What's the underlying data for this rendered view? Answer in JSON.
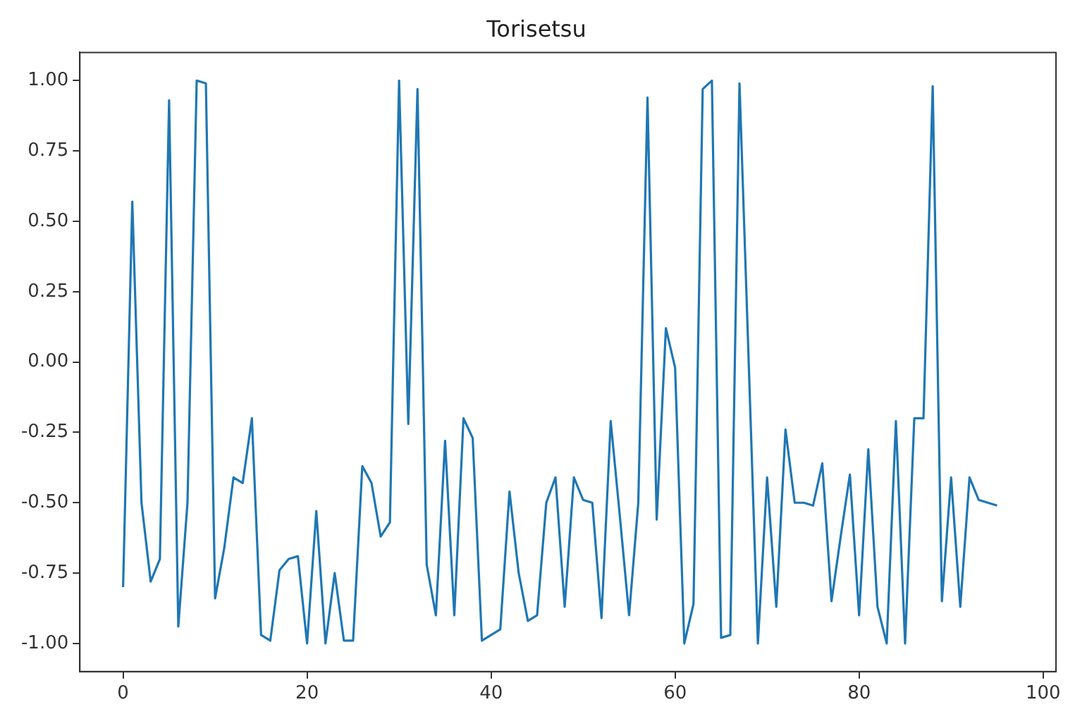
{
  "chart_data": {
    "type": "line",
    "title": "Torisetsu",
    "x": [
      0,
      1,
      2,
      3,
      4,
      5,
      6,
      7,
      8,
      9,
      10,
      11,
      12,
      13,
      14,
      15,
      16,
      17,
      18,
      19,
      20,
      21,
      22,
      23,
      24,
      25,
      26,
      27,
      28,
      29,
      30,
      31,
      32,
      33,
      34,
      35,
      36,
      37,
      38,
      39,
      40,
      41,
      42,
      43,
      44,
      45,
      46,
      47,
      48,
      49,
      50,
      51,
      52,
      53,
      54,
      55,
      56,
      57,
      58,
      59,
      60,
      61,
      62,
      63,
      64,
      65,
      66,
      67,
      68,
      69,
      70,
      71,
      72,
      73,
      74,
      75,
      76,
      77,
      78,
      79,
      80,
      81,
      82,
      83,
      84,
      85,
      86,
      87,
      88,
      89,
      90,
      91,
      92,
      93,
      94,
      95
    ],
    "series": [
      {
        "color": "#1f77b4",
        "values": [
          -0.8,
          0.57,
          -0.5,
          -0.78,
          -0.7,
          0.93,
          -0.94,
          -0.5,
          1.0,
          0.99,
          -0.84,
          -0.66,
          -0.41,
          -0.43,
          -0.2,
          -0.97,
          -0.99,
          -0.74,
          -0.7,
          -0.69,
          -1.0,
          -0.53,
          -1.0,
          -0.75,
          -0.99,
          -0.99,
          -0.37,
          -0.43,
          -0.62,
          -0.57,
          1.0,
          -0.22,
          0.97,
          -0.72,
          -0.9,
          -0.28,
          -0.9,
          -0.2,
          -0.27,
          -0.99,
          -0.97,
          -0.95,
          -0.46,
          -0.75,
          -0.92,
          -0.9,
          -0.5,
          -0.41,
          -0.87,
          -0.41,
          -0.49,
          -0.5,
          -0.91,
          -0.21,
          -0.55,
          -0.9,
          -0.5,
          0.94,
          -0.56,
          0.12,
          -0.02,
          -1.0,
          -0.86,
          0.97,
          1.0,
          -0.98,
          -0.97,
          0.99,
          0.0,
          -1.0,
          -0.41,
          -0.87,
          -0.24,
          -0.5,
          -0.5,
          -0.51,
          -0.36,
          -0.85,
          -0.62,
          -0.4,
          -0.9,
          -0.31,
          -0.87,
          -1.0,
          -0.21,
          -1.0,
          -0.2,
          -0.2,
          0.98,
          -0.85,
          -0.41,
          -0.87,
          -0.41,
          -0.49,
          -0.5,
          -0.51
        ]
      }
    ],
    "xlim": [
      -4.7,
      101.4
    ],
    "xticks": [
      0,
      20,
      40,
      60,
      80,
      100
    ],
    "ylim": [
      -1.1,
      1.1
    ],
    "yticks": [
      {
        "value": -1,
        "label": "-1.00"
      },
      {
        "value": -0.75,
        "label": "-0.75"
      },
      {
        "value": -0.5,
        "label": "-0.50"
      },
      {
        "value": -0.25,
        "label": "-0.25"
      },
      {
        "value": 0,
        "label": "0.00"
      },
      {
        "value": 0.25,
        "label": "0.25"
      },
      {
        "value": 0.5,
        "label": "0.50"
      },
      {
        "value": 0.75,
        "label": "0.75"
      },
      {
        "value": 1,
        "label": "1.00"
      }
    ],
    "grid": false,
    "legend": false,
    "marker": "none",
    "line_style": "solid"
  }
}
